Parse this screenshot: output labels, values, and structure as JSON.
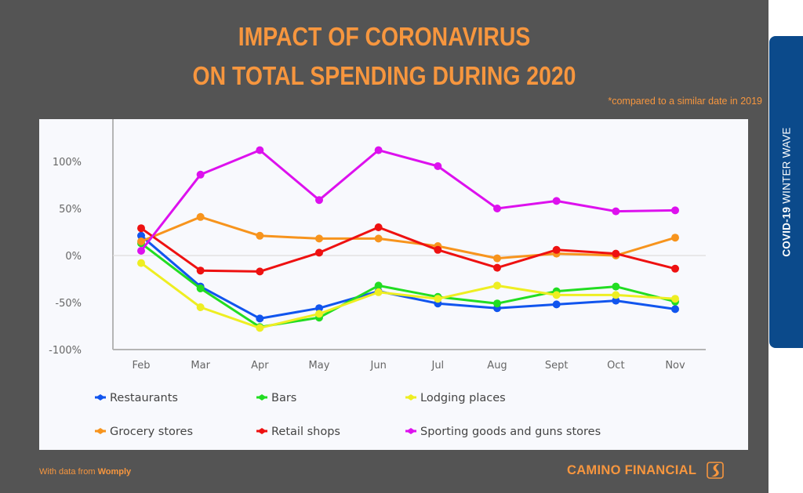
{
  "header": {
    "title_line1": "IMPACT OF CORONAVIRUS",
    "title_line2": "ON TOTAL SPENDING DURING 2020",
    "note": "*compared to a similar date in 2019"
  },
  "side_tab": {
    "bold": "COVID-19",
    "rest": " WINTER WAVE",
    "color": "#0b4a8b"
  },
  "footer": {
    "source_prefix": "With data from ",
    "source_name": "Womply",
    "brand": "CAMINO FINANCIAL",
    "brand_icon": "camino-road-logo-icon",
    "accent_color": "#f7963e"
  },
  "chart_data": {
    "type": "line",
    "title": "Impact of Coronavirus on Total Spending During 2020",
    "xlabel": "",
    "ylabel": "",
    "x": [
      "Feb",
      "Mar",
      "Apr",
      "May",
      "Jun",
      "Jul",
      "Aug",
      "Sept",
      "Oct",
      "Nov"
    ],
    "ylim": [
      -100,
      100
    ],
    "yticks": [
      100,
      50,
      0,
      -50,
      -100
    ],
    "ytick_labels": [
      "100%",
      "50%",
      "0%",
      "-50%",
      "-100%"
    ],
    "grid": false,
    "zero_line": true,
    "legend_position": "bottom",
    "series": [
      {
        "name": "Restaurants",
        "color": "#1155ee",
        "values": [
          21,
          -33,
          -67,
          -56,
          -38,
          -51,
          -56,
          -52,
          -48,
          -57
        ]
      },
      {
        "name": "Bars",
        "color": "#22dd22",
        "values": [
          13,
          -35,
          -76,
          -66,
          -32,
          -44,
          -51,
          -38,
          -33,
          -49
        ]
      },
      {
        "name": "Lodging places",
        "color": "#eeee22",
        "values": [
          -8,
          -55,
          -77,
          -62,
          -39,
          -46,
          -32,
          -42,
          -42,
          -46
        ]
      },
      {
        "name": "Grocery stores",
        "color": "#f7941d",
        "values": [
          15,
          41,
          21,
          18,
          18,
          10,
          -3,
          2,
          0,
          19
        ]
      },
      {
        "name": "Retail shops",
        "color": "#ee1111",
        "values": [
          29,
          -16,
          -17,
          3,
          30,
          6,
          -13,
          6,
          2,
          -14
        ]
      },
      {
        "name": "Sporting goods and guns stores",
        "color": "#dd11ee",
        "values": [
          5,
          86,
          112,
          59,
          112,
          95,
          50,
          58,
          47,
          48
        ]
      }
    ]
  }
}
